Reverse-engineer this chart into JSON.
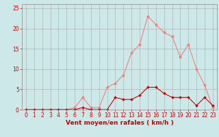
{
  "x": [
    0,
    1,
    2,
    3,
    4,
    5,
    6,
    7,
    8,
    9,
    10,
    11,
    12,
    13,
    14,
    15,
    16,
    17,
    18,
    19,
    20,
    21,
    22,
    23
  ],
  "rafales": [
    0,
    0,
    0,
    0,
    0,
    0,
    0.5,
    3,
    0.5,
    0.5,
    5.5,
    6.5,
    8.5,
    14,
    16,
    23,
    21,
    19,
    18,
    13,
    16,
    10,
    6,
    0.5
  ],
  "moyen": [
    0,
    0,
    0,
    0,
    0,
    0,
    0,
    0.5,
    0,
    0,
    0,
    3,
    2.5,
    2.5,
    3.5,
    5.5,
    5.5,
    4,
    3,
    3,
    3,
    1,
    3,
    1
  ],
  "xlabel": "Vent moyen/en rafales ( km/h )",
  "ylim": [
    0,
    26
  ],
  "xlim": [
    -0.5,
    23.5
  ],
  "yticks": [
    0,
    5,
    10,
    15,
    20,
    25
  ],
  "xticks": [
    0,
    1,
    2,
    3,
    4,
    5,
    6,
    7,
    8,
    9,
    10,
    11,
    12,
    13,
    14,
    15,
    16,
    17,
    18,
    19,
    20,
    21,
    22,
    23
  ],
  "color_rafales": "#f08080",
  "color_moyen": "#cc0000",
  "bg_color": "#cce8e8",
  "grid_color": "#aaaaaa",
  "marker_rafales": "o",
  "marker_moyen": "D",
  "marker_size_rafales": 2.5,
  "marker_size_moyen": 2.0,
  "linewidth": 0.8,
  "tick_fontsize": 5.5,
  "xlabel_fontsize": 6.5
}
